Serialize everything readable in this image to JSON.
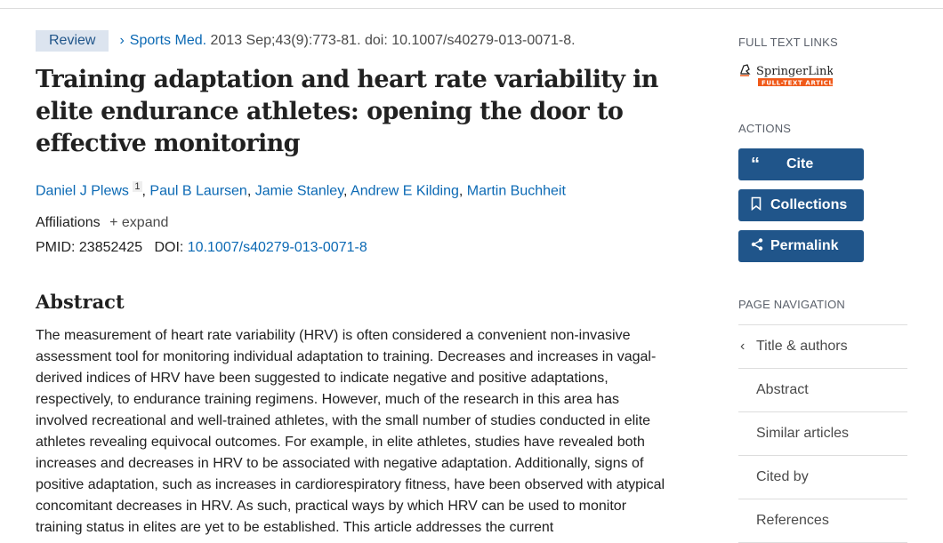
{
  "header": {
    "badge": "Review",
    "journal": "Sports Med.",
    "citation": " 2013 Sep;43(9):773-81. doi: 10.1007/s40279-013-0071-8."
  },
  "title": "Training adaptation and heart rate variability in elite endurance athletes: opening the door to effective monitoring",
  "authors": [
    {
      "name": "Daniel J Plews",
      "sup": "1"
    },
    {
      "name": "Paul B Laursen"
    },
    {
      "name": "Jamie Stanley"
    },
    {
      "name": "Andrew E Kilding"
    },
    {
      "name": "Martin Buchheit"
    }
  ],
  "affiliations": {
    "label": "Affiliations",
    "expand": "expand"
  },
  "ids": {
    "pmid_label": "PMID:",
    "pmid": "23852425",
    "doi_label": "DOI:",
    "doi": "10.1007/s40279-013-0071-8"
  },
  "abstract": {
    "heading": "Abstract",
    "text": "The measurement of heart rate variability (HRV) is often considered a convenient non-invasive assessment tool for monitoring individual adaptation to training. Decreases and increases in vagal-derived indices of HRV have been suggested to indicate negative and positive adaptations, respectively, to endurance training regimens. However, much of the research in this area has involved recreational and well-trained athletes, with the small number of studies conducted in elite athletes revealing equivocal outcomes. For example, in elite athletes, studies have revealed both increases and decreases in HRV to be associated with negative adaptation. Additionally, signs of positive adaptation, such as increases in cardiorespiratory fitness, have been observed with atypical concomitant decreases in HRV. As such, practical ways by which HRV can be used to monitor training status in elites are yet to be established. This article addresses the current"
  },
  "sidebar": {
    "full_text_label": "FULL TEXT LINKS",
    "logo": {
      "name": "SpringerLink",
      "sub": "FULL-TEXT ARTICLE",
      "accent": "#f05a1a"
    },
    "actions_label": "ACTIONS",
    "buttons": {
      "cite": "Cite",
      "collections": "Collections",
      "permalink": "Permalink"
    },
    "page_nav_label": "PAGE NAVIGATION",
    "nav": [
      "Title & authors",
      "Abstract",
      "Similar articles",
      "Cited by",
      "References"
    ]
  },
  "colors": {
    "link": "#0b69b4",
    "button": "#20558a",
    "badge_bg": "#dce4ef"
  }
}
